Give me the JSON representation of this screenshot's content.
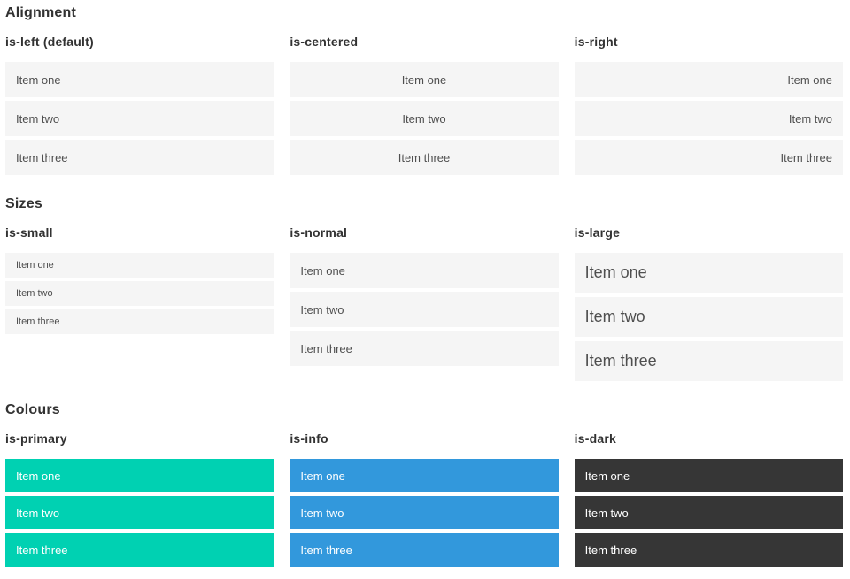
{
  "colors": {
    "primary": "#00d1b2",
    "info": "#3298dc",
    "dark": "#363636",
    "item_bg": "#f5f5f5",
    "item_text": "#4f4f4f",
    "on_color_text": "#ffffff",
    "heading_text": "#323232"
  },
  "sections": [
    {
      "title": "Alignment",
      "columns": [
        {
          "subtitle": "is-left (default)",
          "items": [
            "Item one",
            "Item two",
            "Item three"
          ]
        },
        {
          "subtitle": "is-centered",
          "items": [
            "Item one",
            "Item two",
            "Item three"
          ]
        },
        {
          "subtitle": "is-right",
          "items": [
            "Item one",
            "Item two",
            "Item three"
          ]
        }
      ]
    },
    {
      "title": "Sizes",
      "columns": [
        {
          "subtitle": "is-small",
          "items": [
            "Item one",
            "Item two",
            "Item three"
          ]
        },
        {
          "subtitle": "is-normal",
          "items": [
            "Item one",
            "Item two",
            "Item three"
          ]
        },
        {
          "subtitle": "is-large",
          "items": [
            "Item one",
            "Item two",
            "Item three"
          ]
        }
      ]
    },
    {
      "title": "Colours",
      "columns": [
        {
          "subtitle": "is-primary",
          "items": [
            "Item one",
            "Item two",
            "Item three"
          ]
        },
        {
          "subtitle": "is-info",
          "items": [
            "Item one",
            "Item two",
            "Item three"
          ]
        },
        {
          "subtitle": "is-dark",
          "items": [
            "Item one",
            "Item two",
            "Item three"
          ]
        }
      ]
    }
  ]
}
